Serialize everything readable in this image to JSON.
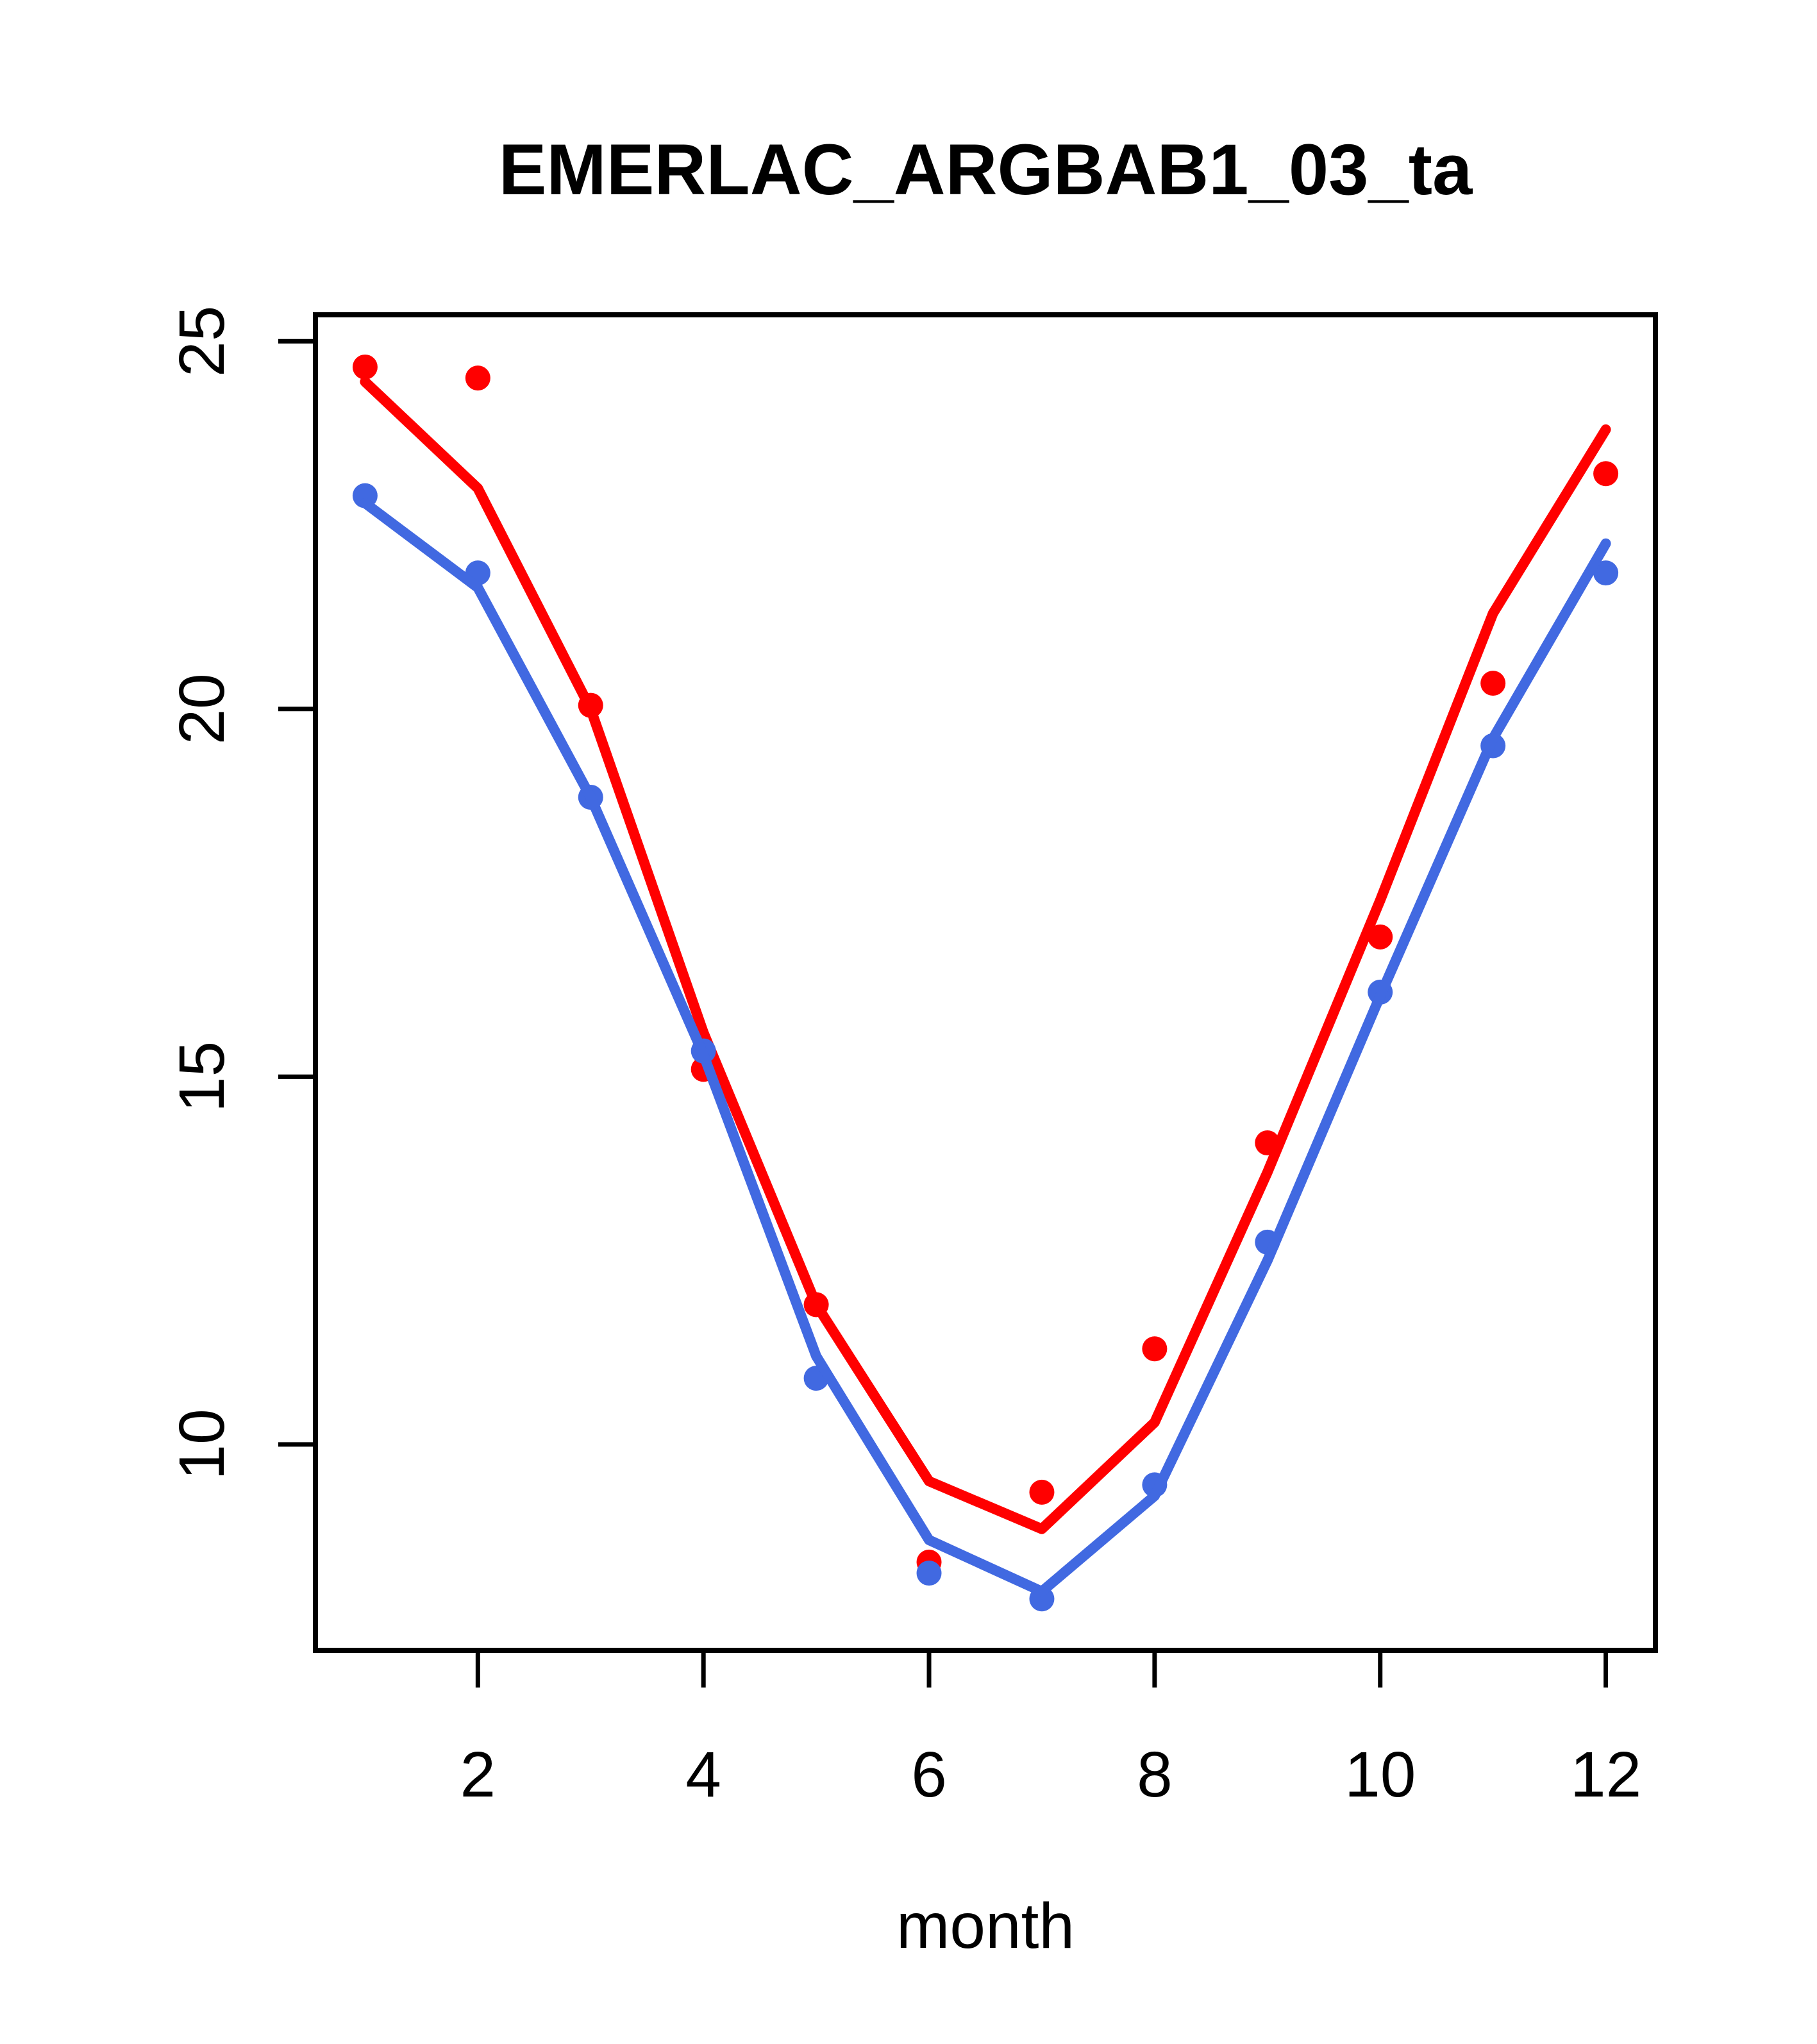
{
  "title": "EMERLAC_ARGBAB1_03_ta",
  "x_axis": {
    "label": "month",
    "tick_labels": [
      "2",
      "4",
      "6",
      "8",
      "10",
      "12"
    ]
  },
  "y_axis": {
    "label": "",
    "tick_labels": [
      "10",
      "15",
      "20",
      "25"
    ]
  },
  "colors": {
    "red_series": "#FF0000",
    "blue_series": "#4169E1",
    "axis": "#000000",
    "background": "#FFFFFF"
  },
  "chart_data": {
    "type": "line",
    "title": "EMERLAC_ARGBAB1_03_ta",
    "xlabel": "month",
    "ylabel": "",
    "x": [
      1,
      2,
      3,
      4,
      5,
      6,
      7,
      8,
      9,
      10,
      11,
      12
    ],
    "x_ticks": [
      2,
      4,
      6,
      8,
      10,
      12
    ],
    "y_ticks": [
      10,
      15,
      20,
      25
    ],
    "xlim": [
      0.56,
      12.44
    ],
    "ylim": [
      7.2,
      25.36
    ],
    "grid": false,
    "legend": "none",
    "series": [
      {
        "name": "red-points",
        "style": "points",
        "color": "#FF0000",
        "values": [
          24.65,
          24.5,
          20.05,
          15.1,
          11.9,
          8.4,
          9.35,
          11.3,
          14.1,
          16.9,
          20.35,
          23.2
        ]
      },
      {
        "name": "red-line",
        "style": "line",
        "color": "#FF0000",
        "values": [
          24.45,
          23.0,
          20.0,
          15.6,
          11.9,
          9.5,
          8.85,
          10.3,
          13.7,
          17.4,
          21.3,
          23.8
        ]
      },
      {
        "name": "blue-points",
        "style": "points",
        "color": "#4169E1",
        "values": [
          22.9,
          21.85,
          18.8,
          15.35,
          10.9,
          8.25,
          7.9,
          9.45,
          12.75,
          16.15,
          19.5,
          21.85
        ]
      },
      {
        "name": "blue-line",
        "style": "line",
        "color": "#4169E1",
        "values": [
          22.8,
          21.65,
          18.8,
          15.3,
          11.2,
          8.7,
          8.0,
          9.3,
          12.5,
          16.1,
          19.6,
          22.25
        ]
      }
    ]
  }
}
